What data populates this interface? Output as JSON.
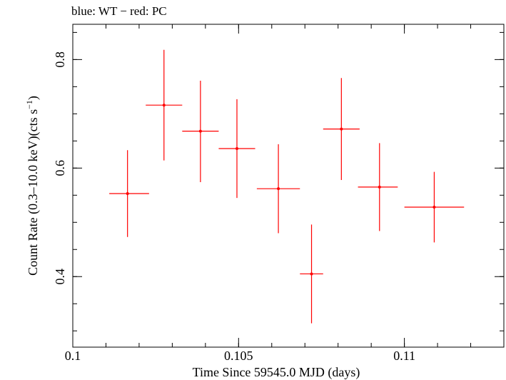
{
  "chart_data": {
    "type": "scatter",
    "title": "blue: WT − red: PC",
    "xlabel": "Time Since 59545.0 MJD (days)",
    "ylabel": "Count Rate (0.3–10.0 keV)(cts s",
    "ylabel_sup": "−1",
    "ylabel_end": ")",
    "xlim": [
      0.1,
      0.113
    ],
    "ylim": [
      0.27,
      0.865
    ],
    "x_ticks": [
      {
        "value": 0.1,
        "label": "0.1"
      },
      {
        "value": 0.105,
        "label": "0.105"
      },
      {
        "value": 0.11,
        "label": "0.11"
      }
    ],
    "y_ticks": [
      {
        "value": 0.4,
        "label": "0.4"
      },
      {
        "value": 0.6,
        "label": "0.6"
      },
      {
        "value": 0.8,
        "label": "0.8"
      }
    ],
    "x_minor_step": 0.001,
    "y_minor_step": 0.1,
    "grid": false,
    "series": [
      {
        "name": "PC",
        "color": "#ff0000",
        "points": [
          {
            "x": 0.10165,
            "xerr": [
              0.00055,
              0.00065
            ],
            "y": 0.553,
            "yerr": [
              0.08,
              0.08
            ]
          },
          {
            "x": 0.10275,
            "xerr": [
              0.00055,
              0.00055
            ],
            "y": 0.716,
            "yerr": [
              0.102,
              0.102
            ]
          },
          {
            "x": 0.10385,
            "xerr": [
              0.00055,
              0.00055
            ],
            "y": 0.668,
            "yerr": [
              0.094,
              0.093
            ]
          },
          {
            "x": 0.10495,
            "xerr": [
              0.00055,
              0.00055
            ],
            "y": 0.636,
            "yerr": [
              0.091,
              0.091
            ]
          },
          {
            "x": 0.1062,
            "xerr": [
              0.00065,
              0.00065
            ],
            "y": 0.562,
            "yerr": [
              0.082,
              0.082
            ]
          },
          {
            "x": 0.1072,
            "xerr": [
              0.00035,
              0.00035
            ],
            "y": 0.405,
            "yerr": [
              0.091,
              0.091
            ]
          },
          {
            "x": 0.1081,
            "xerr": [
              0.00055,
              0.00055
            ],
            "y": 0.672,
            "yerr": [
              0.094,
              0.094
            ]
          },
          {
            "x": 0.10925,
            "xerr": [
              0.00065,
              0.00055
            ],
            "y": 0.565,
            "yerr": [
              0.081,
              0.081
            ]
          },
          {
            "x": 0.1109,
            "xerr": [
              0.0009,
              0.0009
            ],
            "y": 0.528,
            "yerr": [
              0.065,
              0.065
            ]
          }
        ]
      }
    ]
  }
}
